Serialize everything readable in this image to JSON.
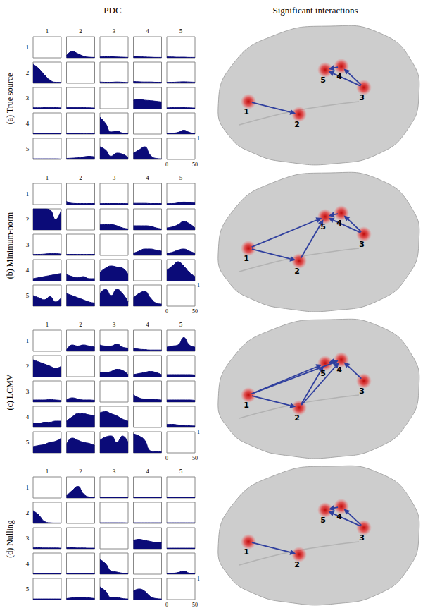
{
  "chart_data": {
    "type": "area",
    "column_titles": [
      "PDC",
      "Significant interactions"
    ],
    "regions": [
      "1",
      "2",
      "3",
      "4",
      "5"
    ],
    "color": "#0b0b78",
    "x": [
      0,
      10,
      20,
      30,
      40,
      50
    ],
    "xlim": [
      0,
      50
    ],
    "xticks": [
      0,
      50
    ],
    "ylim": [
      0,
      1
    ],
    "yticks": [
      1
    ],
    "panels": [
      {
        "label": "(a) True source",
        "pdc": [
          [
            null,
            [
              0.1,
              0.3,
              0.2,
              0.08,
              0.03,
              0.02
            ],
            [
              0.05,
              0.05,
              0.05,
              0.04,
              0.03,
              0.02
            ],
            [
              0.08,
              0.06,
              0.04,
              0.03,
              0.02,
              0.02
            ],
            [
              0.05,
              0.04,
              0.03,
              0.03,
              0.02,
              0.02
            ]
          ],
          [
            [
              0.9,
              0.7,
              0.4,
              0.15,
              0.05,
              0.05
            ],
            null,
            [
              0.06,
              0.05,
              0.05,
              0.06,
              0.05,
              0.04
            ],
            [
              0.08,
              0.07,
              0.06,
              0.06,
              0.05,
              0.05
            ],
            [
              0.05,
              0.05,
              0.06,
              0.07,
              0.06,
              0.05
            ]
          ],
          [
            [
              0.05,
              0.04,
              0.05,
              0.06,
              0.05,
              0.04
            ],
            [
              0.05,
              0.06,
              0.06,
              0.05,
              0.04,
              0.03
            ],
            null,
            [
              0.4,
              0.45,
              0.4,
              0.38,
              0.35,
              0.32
            ],
            [
              0.04,
              0.05,
              0.06,
              0.05,
              0.04,
              0.03
            ]
          ],
          [
            [
              0.05,
              0.05,
              0.04,
              0.03,
              0.03,
              0.03
            ],
            [
              0.03,
              0.03,
              0.03,
              0.02,
              0.02,
              0.02
            ],
            [
              0.8,
              0.5,
              0.1,
              0.15,
              0.05,
              0.03
            ],
            null,
            [
              0.05,
              0.05,
              0.08,
              0.18,
              0.08,
              0.03
            ]
          ],
          [
            [
              0.03,
              0.03,
              0.03,
              0.03,
              0.03,
              0.02
            ],
            [
              0.05,
              0.06,
              0.08,
              0.12,
              0.15,
              0.12
            ],
            [
              0.6,
              0.45,
              0.15,
              0.3,
              0.25,
              0.1
            ],
            [
              0.3,
              0.45,
              0.6,
              0.2,
              0.05,
              0.03
            ],
            null
          ]
        ],
        "interactions": [
          {
            "from": "1",
            "to": "2"
          },
          {
            "from": "3",
            "to": "4"
          },
          {
            "from": "4",
            "to": "5"
          },
          {
            "from": "3",
            "to": "5"
          }
        ]
      },
      {
        "label": "(b) Minimum-norm",
        "pdc": [
          [
            null,
            [
              0.15,
              0.06,
              0.05,
              0.05,
              0.05,
              0.05
            ],
            [
              0.05,
              0.05,
              0.05,
              0.05,
              0.05,
              0.05
            ],
            [
              0.06,
              0.06,
              0.06,
              0.05,
              0.05,
              0.05
            ],
            [
              0.05,
              0.05,
              0.08,
              0.12,
              0.1,
              0.08
            ]
          ],
          [
            [
              1,
              1,
              1,
              0.95,
              0.5,
              0.95
            ],
            null,
            [
              0.25,
              0.25,
              0.25,
              0.2,
              0.1,
              0.05
            ],
            [
              0.2,
              0.2,
              0.2,
              0.18,
              0.1,
              0.05
            ],
            [
              0.1,
              0.15,
              0.25,
              0.4,
              0.3,
              0.1
            ]
          ],
          [
            [
              0.05,
              0.05,
              0.06,
              0.08,
              0.08,
              0.06
            ],
            [
              0.05,
              0.05,
              0.05,
              0.05,
              0.05,
              0.05
            ],
            null,
            [
              0.1,
              0.2,
              0.3,
              0.3,
              0.25,
              0.2
            ],
            [
              0.1,
              0.15,
              0.25,
              0.3,
              0.2,
              0.1
            ]
          ],
          [
            [
              0.1,
              0.15,
              0.2,
              0.25,
              0.3,
              0.35
            ],
            [
              0.3,
              0.2,
              0.15,
              0.2,
              0.1,
              0.1
            ],
            [
              0.4,
              0.6,
              0.7,
              0.65,
              0.6,
              0.3
            ],
            null,
            [
              0.5,
              0.7,
              0.9,
              0.7,
              0.4,
              0.2
            ]
          ],
          [
            [
              0.5,
              0.4,
              0.3,
              0.45,
              0.2,
              0.4
            ],
            [
              0.6,
              0.5,
              0.4,
              0.3,
              0.2,
              0.15
            ],
            [
              0.6,
              0.8,
              0.5,
              0.8,
              0.6,
              0.2
            ],
            [
              0.4,
              0.6,
              0.7,
              0.4,
              0.15,
              0.1
            ],
            null
          ]
        ],
        "interactions": [
          {
            "from": "1",
            "to": "2"
          },
          {
            "from": "1",
            "to": "5"
          },
          {
            "from": "2",
            "to": "5"
          },
          {
            "from": "3",
            "to": "4"
          },
          {
            "from": "4",
            "to": "5"
          },
          {
            "from": "3",
            "to": "5"
          }
        ]
      },
      {
        "label": "(c) LCMV",
        "pdc": [
          [
            null,
            [
              0.05,
              0.3,
              0.25,
              0.3,
              0.25,
              0.2
            ],
            [
              0.3,
              0.25,
              0.25,
              0.35,
              0.2,
              0.15
            ],
            [
              0.15,
              0.1,
              0.08,
              0.06,
              0.06,
              0.06
            ],
            [
              0.2,
              0.25,
              0.3,
              0.65,
              0.3,
              0.2
            ]
          ],
          [
            [
              0.8,
              0.7,
              0.6,
              0.5,
              0.4,
              0.5
            ],
            null,
            [
              0.2,
              0.2,
              0.25,
              0.35,
              0.3,
              0.1
            ],
            [
              0.1,
              0.15,
              0.2,
              0.25,
              0.2,
              0.1
            ],
            [
              0.1,
              0.1,
              0.1,
              0.1,
              0.1,
              0.08
            ]
          ],
          [
            [
              0.1,
              0.1,
              0.1,
              0.12,
              0.1,
              0.08
            ],
            [
              0.1,
              0.2,
              0.15,
              0.1,
              0.1,
              0.08
            ],
            null,
            [
              0.35,
              0.2,
              0.15,
              0.15,
              0.12,
              0.1
            ],
            [
              0.1,
              0.1,
              0.1,
              0.1,
              0.1,
              0.08
            ]
          ],
          [
            [
              0.2,
              0.2,
              0.25,
              0.25,
              0.3,
              0.3
            ],
            [
              0.3,
              0.5,
              0.65,
              0.65,
              0.6,
              0.55
            ],
            [
              0.7,
              0.75,
              0.65,
              0.55,
              0.4,
              0.3
            ],
            null,
            [
              0.15,
              0.15,
              0.12,
              0.1,
              0.08,
              0.07
            ]
          ],
          [
            [
              0.3,
              0.35,
              0.4,
              0.5,
              0.55,
              0.7
            ],
            [
              0.4,
              0.7,
              0.6,
              0.5,
              0.45,
              0.35
            ],
            [
              0.6,
              0.75,
              0.8,
              0.5,
              0.8,
              0.5
            ],
            [
              0.9,
              0.8,
              0.6,
              0.1,
              0.05,
              0.05
            ],
            null
          ]
        ],
        "interactions": [
          {
            "from": "1",
            "to": "2"
          },
          {
            "from": "1",
            "to": "5"
          },
          {
            "from": "1",
            "to": "4"
          },
          {
            "from": "2",
            "to": "5"
          },
          {
            "from": "2",
            "to": "4"
          },
          {
            "from": "3",
            "to": "4"
          },
          {
            "from": "4",
            "to": "5"
          }
        ]
      },
      {
        "label": "(d) Nulling",
        "pdc": [
          [
            null,
            [
              0.1,
              0.35,
              0.55,
              0.2,
              0.05,
              0.03
            ],
            [
              0.05,
              0.05,
              0.04,
              0.03,
              0.03,
              0.03
            ],
            [
              0.05,
              0.05,
              0.04,
              0.03,
              0.03,
              0.03
            ],
            [
              0.05,
              0.04,
              0.03,
              0.03,
              0.03,
              0.03
            ]
          ],
          [
            [
              0.6,
              0.4,
              0.1,
              0.03,
              0.02,
              0.02
            ],
            null,
            [
              0.03,
              0.03,
              0.03,
              0.03,
              0.03,
              0.02
            ],
            [
              0.03,
              0.03,
              0.03,
              0.03,
              0.03,
              0.03
            ],
            [
              0.03,
              0.03,
              0.03,
              0.03,
              0.03,
              0.03
            ]
          ],
          [
            [
              0.05,
              0.05,
              0.04,
              0.04,
              0.04,
              0.03
            ],
            [
              0.05,
              0.05,
              0.04,
              0.04,
              0.03,
              0.03
            ],
            null,
            [
              0.4,
              0.45,
              0.4,
              0.35,
              0.3,
              0.3
            ],
            [
              0.03,
              0.03,
              0.03,
              0.03,
              0.03,
              0.03
            ]
          ],
          [
            [
              0.04,
              0.04,
              0.04,
              0.04,
              0.04,
              0.03
            ],
            [
              0.03,
              0.03,
              0.03,
              0.03,
              0.03,
              0.03
            ],
            [
              0.7,
              0.5,
              0.15,
              0.1,
              0.05,
              0.03
            ],
            null,
            [
              0.05,
              0.05,
              0.08,
              0.15,
              0.05,
              0.03
            ]
          ],
          [
            [
              0.03,
              0.03,
              0.03,
              0.03,
              0.03,
              0.03
            ],
            [
              0.05,
              0.08,
              0.1,
              0.1,
              0.08,
              0.05
            ],
            [
              0.6,
              0.4,
              0.1,
              0.1,
              0.05,
              0.03
            ],
            [
              0.4,
              0.5,
              0.4,
              0.15,
              0.05,
              0.03
            ],
            null
          ]
        ],
        "interactions": [
          {
            "from": "1",
            "to": "2"
          },
          {
            "from": "3",
            "to": "4"
          },
          {
            "from": "4",
            "to": "5"
          },
          {
            "from": "3",
            "to": "5"
          }
        ]
      }
    ]
  }
}
